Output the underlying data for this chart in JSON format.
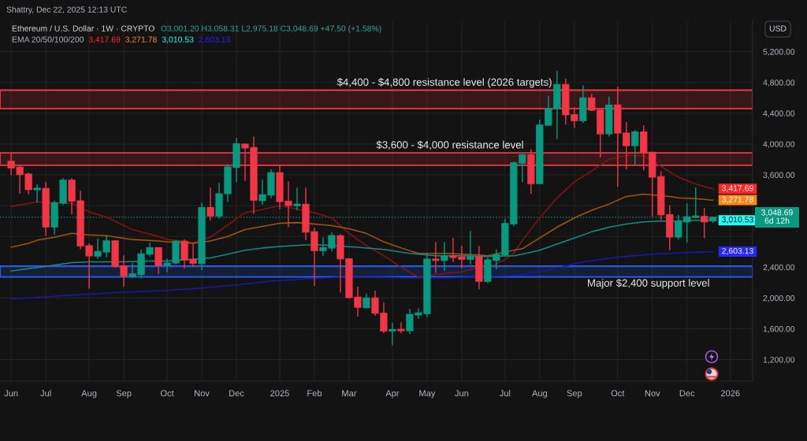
{
  "chart_data": {
    "type": "candlestick",
    "title": "Ethereum / U.S. Dollar · 1W · CRYPTO",
    "x": [
      "2024-06-03",
      "2024-06-10",
      "2024-06-17",
      "2024-06-24",
      "2024-07-01",
      "2024-07-08",
      "2024-07-15",
      "2024-07-22",
      "2024-07-29",
      "2024-08-05",
      "2024-08-12",
      "2024-08-19",
      "2024-08-26",
      "2024-09-02",
      "2024-09-09",
      "2024-09-16",
      "2024-09-23",
      "2024-09-30",
      "2024-10-07",
      "2024-10-14",
      "2024-10-21",
      "2024-10-28",
      "2024-11-04",
      "2024-11-11",
      "2024-11-18",
      "2024-11-25",
      "2024-12-02",
      "2024-12-09",
      "2024-12-16",
      "2024-12-23",
      "2024-12-30",
      "2025-01-06",
      "2025-01-13",
      "2025-01-20",
      "2025-01-27",
      "2025-02-03",
      "2025-02-10",
      "2025-02-17",
      "2025-02-24",
      "2025-03-03",
      "2025-03-10",
      "2025-03-17",
      "2025-03-24",
      "2025-03-31",
      "2025-04-07",
      "2025-04-14",
      "2025-04-21",
      "2025-04-28",
      "2025-05-05",
      "2025-05-12",
      "2025-05-19",
      "2025-05-26",
      "2025-06-02",
      "2025-06-09",
      "2025-06-16",
      "2025-06-23",
      "2025-06-30",
      "2025-07-07",
      "2025-07-14",
      "2025-07-21",
      "2025-07-28",
      "2025-08-04",
      "2025-08-11",
      "2025-08-18",
      "2025-08-25",
      "2025-09-01",
      "2025-09-08",
      "2025-09-15",
      "2025-09-22",
      "2025-09-29",
      "2025-10-06",
      "2025-10-13",
      "2025-10-20",
      "2025-10-27",
      "2025-11-03",
      "2025-11-10",
      "2025-11-17",
      "2025-11-24",
      "2025-12-01",
      "2025-12-08",
      "2025-12-15",
      "2025-12-22"
    ],
    "ohlc": [
      [
        3775,
        3877,
        3594,
        3690
      ],
      [
        3700,
        3730,
        3355,
        3604
      ],
      [
        3611,
        3629,
        3348,
        3410
      ],
      [
        3407,
        3478,
        3240,
        3427
      ],
      [
        3424,
        3509,
        2810,
        2923
      ],
      [
        2923,
        3264,
        2826,
        3236
      ],
      [
        3233,
        3560,
        3210,
        3530
      ],
      [
        3530,
        3560,
        3086,
        3260
      ],
      [
        3263,
        3393,
        2632,
        2677
      ],
      [
        2680,
        2711,
        2121,
        2547
      ],
      [
        2544,
        2769,
        2509,
        2606
      ],
      [
        2598,
        2810,
        2530,
        2742
      ],
      [
        2742,
        2752,
        2394,
        2411
      ],
      [
        2417,
        2558,
        2148,
        2289
      ],
      [
        2284,
        2455,
        2264,
        2312
      ],
      [
        2305,
        2632,
        2258,
        2575
      ],
      [
        2571,
        2721,
        2537,
        2653
      ],
      [
        2653,
        2660,
        2309,
        2428
      ],
      [
        2428,
        2514,
        2333,
        2455
      ],
      [
        2455,
        2752,
        2435,
        2739
      ],
      [
        2739,
        2762,
        2384,
        2496
      ],
      [
        2499,
        2708,
        2404,
        2452
      ],
      [
        2448,
        3240,
        2360,
        3174
      ],
      [
        3174,
        3434,
        3008,
        3066
      ],
      [
        3066,
        3496,
        3035,
        3355
      ],
      [
        3355,
        3741,
        3246,
        3703
      ],
      [
        3696,
        4082,
        3502,
        4003
      ],
      [
        3999,
        4010,
        3519,
        3949
      ],
      [
        3956,
        4099,
        3093,
        3271
      ],
      [
        3267,
        3537,
        3212,
        3342
      ],
      [
        3338,
        3673,
        3297,
        3629
      ],
      [
        3629,
        3724,
        3154,
        3253
      ],
      [
        3256,
        3516,
        2919,
        3202
      ],
      [
        3199,
        3434,
        3138,
        3219
      ],
      [
        3219,
        3434,
        2752,
        2857
      ],
      [
        2861,
        2913,
        2156,
        2616
      ],
      [
        2616,
        2786,
        2544,
        2657
      ],
      [
        2650,
        2854,
        2606,
        2813
      ],
      [
        2810,
        2831,
        2070,
        2509
      ],
      [
        2509,
        2513,
        1992,
        2008
      ],
      [
        2012,
        2148,
        1760,
        1879
      ],
      [
        1875,
        2059,
        1870,
        2002
      ],
      [
        2002,
        2097,
        1770,
        1803
      ],
      [
        1803,
        1941,
        1542,
        1572
      ],
      [
        1572,
        1678,
        1388,
        1589
      ],
      [
        1593,
        1685,
        1542,
        1575
      ],
      [
        1575,
        1855,
        1535,
        1787
      ],
      [
        1780,
        1865,
        1729,
        1808
      ],
      [
        1797,
        2591,
        1752,
        2506
      ],
      [
        2506,
        2728,
        2325,
        2489
      ],
      [
        2489,
        2728,
        2350,
        2547
      ],
      [
        2547,
        2780,
        2468,
        2527
      ],
      [
        2534,
        2677,
        2387,
        2503
      ],
      [
        2503,
        2872,
        2435,
        2537
      ],
      [
        2537,
        2673,
        2115,
        2217
      ],
      [
        2217,
        2527,
        2196,
        2496
      ],
      [
        2489,
        2632,
        2373,
        2561
      ],
      [
        2561,
        3028,
        2537,
        2967
      ],
      [
        2964,
        3775,
        2933,
        3755
      ],
      [
        3751,
        3877,
        3502,
        3860
      ],
      [
        3860,
        3936,
        3355,
        3485
      ],
      [
        3485,
        4320,
        3480,
        4246
      ],
      [
        4246,
        4627,
        4240,
        4463
      ],
      [
        4463,
        4950,
        4064,
        4774
      ],
      [
        4774,
        4849,
        4253,
        4381
      ],
      [
        4381,
        4474,
        4208,
        4304
      ],
      [
        4304,
        4764,
        4276,
        4600
      ],
      [
        4600,
        4652,
        4430,
        4440
      ],
      [
        4440,
        4450,
        3826,
        4133
      ],
      [
        4133,
        4617,
        4099,
        4508
      ],
      [
        4508,
        4747,
        3445,
        4143
      ],
      [
        4143,
        4287,
        3673,
        3980
      ],
      [
        3980,
        4184,
        3720,
        4156
      ],
      [
        4156,
        4243,
        3660,
        3884
      ],
      [
        3895,
        3900,
        3059,
        3570
      ],
      [
        3577,
        3645,
        3015,
        3082
      ],
      [
        3082,
        3205,
        2622,
        2793
      ],
      [
        2793,
        3082,
        2759,
        2990
      ],
      [
        2990,
        3230,
        2718,
        3056
      ],
      [
        3049,
        3440,
        3040,
        3066
      ],
      [
        3059,
        3171,
        2775,
        2990
      ],
      [
        3001.2,
        3058.31,
        2975.18,
        3048.69
      ]
    ],
    "colors": [
      "#f23645",
      "#f23645",
      "#f23645",
      "#089981",
      "#f23645",
      "#089981",
      "#089981",
      "#f23645",
      "#f23645",
      "#f23645",
      "#089981",
      "#089981",
      "#f23645",
      "#f23645",
      "#089981",
      "#089981",
      "#089981",
      "#f23645",
      "#089981",
      "#089981",
      "#f23645",
      "#f23645",
      "#089981",
      "#f23645",
      "#089981",
      "#089981",
      "#089981",
      "#f23645",
      "#f23645",
      "#089981",
      "#089981",
      "#f23645",
      "#f23645",
      "#089981",
      "#f23645",
      "#f23645",
      "#089981",
      "#089981",
      "#f23645",
      "#f23645",
      "#f23645",
      "#089981",
      "#f23645",
      "#f23645",
      "#089981",
      "#f23645",
      "#089981",
      "#089981",
      "#089981",
      "#f23645",
      "#089981",
      "#f23645",
      "#f23645",
      "#089981",
      "#f23645",
      "#089981",
      "#089981",
      "#089981",
      "#089981",
      "#089981",
      "#f23645",
      "#089981",
      "#089981",
      "#089981",
      "#f23645",
      "#f23645",
      "#089981",
      "#f23645",
      "#f23645",
      "#089981",
      "#f23645",
      "#f23645",
      "#089981",
      "#f23645",
      "#f23645",
      "#f23645",
      "#f23645",
      "#089981",
      "#089981",
      "#089981",
      "#f23645",
      "#089981"
    ],
    "series": [
      {
        "type": "line",
        "color": "#861414",
        "x": [
          "2024-06-03",
          "2024-06-17",
          "2024-06-24",
          "2024-07-22",
          "2024-08-05",
          "2024-08-19",
          "2024-09-09",
          "2024-09-30",
          "2024-10-07",
          "2024-10-28",
          "2024-11-11",
          "2024-11-25",
          "2024-12-09",
          "2024-12-23",
          "2025-01-06",
          "2025-02-03",
          "2025-02-17",
          "2025-03-03",
          "2025-03-17",
          "2025-03-31",
          "2025-04-14",
          "2025-04-28",
          "2025-05-19",
          "2025-06-02",
          "2025-06-09",
          "2025-06-30",
          "2025-07-07",
          "2025-07-14",
          "2025-07-21",
          "2025-08-04",
          "2025-08-18",
          "2025-09-01",
          "2025-09-15",
          "2025-09-29",
          "2025-10-13",
          "2025-10-27",
          "2025-11-10",
          "2025-11-24",
          "2025-12-08",
          "2025-12-22"
        ],
        "values": [
          3190,
          3230,
          3250,
          3230,
          3120,
          3050,
          2890,
          2800,
          2760,
          2720,
          2790,
          2950,
          3110,
          3150,
          3200,
          3110,
          3040,
          2840,
          2680,
          2550,
          2400,
          2270,
          2320,
          2340,
          2370,
          2440,
          2500,
          2580,
          2750,
          3040,
          3300,
          3510,
          3650,
          3800,
          3850,
          3850,
          3710,
          3570,
          3480,
          3417.69
        ],
        "value_labels": [
          null,
          null,
          null,
          null,
          null,
          null,
          null,
          null,
          null,
          null,
          null,
          null,
          null,
          null,
          null,
          null,
          null,
          null,
          null,
          null,
          null,
          null,
          null,
          null,
          null,
          null,
          null,
          null,
          null,
          null,
          null,
          null,
          null,
          null,
          null,
          null,
          null,
          null,
          null,
          "3,417.69"
        ]
      },
      {
        "type": "line",
        "color": "#a0550f",
        "x": [
          "2024-06-03",
          "2024-06-17",
          "2024-06-24",
          "2024-07-08",
          "2024-07-22",
          "2024-08-05",
          "2024-08-19",
          "2024-09-09",
          "2024-09-30",
          "2024-10-07",
          "2024-10-28",
          "2024-11-11",
          "2024-11-25",
          "2024-12-09",
          "2024-12-23",
          "2025-01-06",
          "2025-01-20",
          "2025-02-03",
          "2025-02-17",
          "2025-03-03",
          "2025-03-17",
          "2025-03-31",
          "2025-04-14",
          "2025-04-28",
          "2025-05-19",
          "2025-06-16",
          "2025-06-23",
          "2025-07-14",
          "2025-07-21",
          "2025-08-04",
          "2025-08-18",
          "2025-09-01",
          "2025-09-15",
          "2025-09-29",
          "2025-10-13",
          "2025-10-27",
          "2025-11-17",
          "2025-11-24",
          "2025-12-08",
          "2025-12-22"
        ],
        "values": [
          2660,
          2710,
          2750,
          2790,
          2840,
          2820,
          2810,
          2760,
          2740,
          2730,
          2710,
          2740,
          2800,
          2890,
          2930,
          2970,
          2980,
          2960,
          2940,
          2900,
          2840,
          2730,
          2650,
          2580,
          2580,
          2560,
          2550,
          2620,
          2640,
          2780,
          2920,
          3040,
          3140,
          3220,
          3320,
          3350,
          3320,
          3300,
          3290,
          3271.78
        ],
        "value_labels": [
          null,
          null,
          null,
          null,
          null,
          null,
          null,
          null,
          null,
          null,
          null,
          null,
          null,
          null,
          null,
          null,
          null,
          null,
          null,
          null,
          null,
          null,
          null,
          null,
          null,
          null,
          null,
          null,
          null,
          null,
          null,
          null,
          null,
          null,
          null,
          null,
          null,
          null,
          null,
          "3,271.78"
        ]
      },
      {
        "type": "line",
        "color": "#138c87",
        "x": [
          "2024-06-03",
          "2024-06-17",
          "2024-07-01",
          "2024-07-22",
          "2024-08-05",
          "2024-09-02",
          "2024-09-23",
          "2024-10-07",
          "2024-11-11",
          "2024-11-25",
          "2024-12-09",
          "2024-12-23",
          "2025-01-06",
          "2025-01-27",
          "2025-02-10",
          "2025-03-10",
          "2025-03-31",
          "2025-04-21",
          "2025-05-12",
          "2025-06-02",
          "2025-06-23",
          "2025-07-14",
          "2025-07-21",
          "2025-08-04",
          "2025-08-18",
          "2025-09-01",
          "2025-09-15",
          "2025-09-29",
          "2025-10-13",
          "2025-10-27",
          "2025-11-10",
          "2025-11-24",
          "2025-12-08",
          "2025-12-22"
        ],
        "values": [
          2350,
          2380,
          2410,
          2460,
          2470,
          2470,
          2480,
          2480,
          2520,
          2570,
          2620,
          2650,
          2670,
          2690,
          2690,
          2660,
          2630,
          2580,
          2550,
          2550,
          2540,
          2550,
          2570,
          2620,
          2700,
          2780,
          2860,
          2920,
          2960,
          2990,
          3000,
          3000,
          3010,
          3010.53
        ],
        "value_labels": [
          null,
          null,
          null,
          null,
          null,
          null,
          null,
          null,
          null,
          null,
          null,
          null,
          null,
          null,
          null,
          null,
          null,
          null,
          null,
          null,
          null,
          null,
          null,
          null,
          null,
          null,
          null,
          null,
          null,
          null,
          null,
          null,
          null,
          "3,010.53"
        ]
      },
      {
        "type": "line",
        "color": "#1919aa",
        "x": [
          "2024-06-03",
          "2024-07-15",
          "2024-08-26",
          "2024-10-07",
          "2024-11-04",
          "2024-12-02",
          "2024-12-30",
          "2025-01-27",
          "2025-02-24",
          "2025-03-24",
          "2025-04-21",
          "2025-05-19",
          "2025-06-09",
          "2025-07-14",
          "2025-08-11",
          "2025-09-08",
          "2025-10-06",
          "2025-11-03",
          "2025-12-01",
          "2025-12-22"
        ],
        "values": [
          1990,
          2030,
          2070,
          2100,
          2130,
          2170,
          2220,
          2250,
          2270,
          2270,
          2260,
          2260,
          2270,
          2290,
          2360,
          2470,
          2530,
          2570,
          2590,
          2603.13
        ],
        "value_labels": [
          null,
          null,
          null,
          null,
          null,
          null,
          null,
          null,
          null,
          null,
          null,
          null,
          null,
          null,
          null,
          null,
          null,
          null,
          null,
          "2,603.13"
        ]
      }
    ],
    "xlim": [
      "2024-05-25",
      "2026-01-23"
    ],
    "ylim": [
      920,
      5595
    ],
    "xticks": [
      {
        "value": "2024-06-03",
        "label": "Jun"
      },
      {
        "value": "2024-07-01",
        "label": "Jul"
      },
      {
        "value": "2024-08-05",
        "label": "Aug"
      },
      {
        "value": "2024-09-02",
        "label": "Sep"
      },
      {
        "value": "2024-10-07",
        "label": "Oct"
      },
      {
        "value": "2024-11-04",
        "label": "Nov"
      },
      {
        "value": "2024-12-02",
        "label": "Dec"
      },
      {
        "value": "2025-01-06",
        "label": "2025"
      },
      {
        "value": "2025-02-03",
        "label": "Feb"
      },
      {
        "value": "2025-03-03",
        "label": "Mar"
      },
      {
        "value": "2025-04-07",
        "label": "Apr"
      },
      {
        "value": "2025-05-05",
        "label": "May"
      },
      {
        "value": "2025-06-02",
        "label": "Jun"
      },
      {
        "value": "2025-07-07",
        "label": "Jul"
      },
      {
        "value": "2025-08-04",
        "label": "Aug"
      },
      {
        "value": "2025-09-01",
        "label": "Sep"
      },
      {
        "value": "2025-10-06",
        "label": "Oct"
      },
      {
        "value": "2025-11-03",
        "label": "Nov"
      },
      {
        "value": "2025-12-01",
        "label": "Dec"
      },
      {
        "value": "2026-01-05",
        "label": "2026"
      }
    ],
    "yticks": [
      {
        "value": 1200,
        "label": "1,200.00"
      },
      {
        "value": 1600,
        "label": "1,600.00"
      },
      {
        "value": 2000,
        "label": "2,000.00"
      },
      {
        "value": 2400,
        "label": "2,400.00"
      },
      {
        "value": 2800,
        "label": null
      },
      {
        "value": 3200,
        "label": null
      },
      {
        "value": 3600,
        "label": "3,600.00"
      },
      {
        "value": 4000,
        "label": "4,000.00"
      },
      {
        "value": 4400,
        "label": "4,400.00"
      },
      {
        "value": 4800,
        "label": "4,800.00"
      },
      {
        "value": 5200,
        "label": "5,200.00"
      }
    ],
    "ylabel": "USD",
    "annotations": [
      "Shattry, Dec 22, 2025 12:13 UTC",
      "O3,001.20 H3,058.31 L2,975.18 C3,048.69 +47.50 (+1.58%)",
      "EMA 20/50/100/200"
    ],
    "ref_lines": [
      {
        "axis": "y",
        "value": 3048.69,
        "label": "3,048.69\n6d 12h",
        "color": "#089981",
        "line_style": "dotted"
      }
    ],
    "bands": [
      {
        "axis": "y",
        "from": 4460,
        "to": 4700,
        "label": "$4,400 - $4,800 resistance level (2026 targets)",
        "color": "#f23645"
      },
      {
        "axis": "y",
        "from": 3725,
        "to": 3885,
        "label": "$3,600 - $4,000 resistance level",
        "color": "#f23645"
      },
      {
        "axis": "y",
        "from": 2275,
        "to": 2415,
        "label": "Major $2,400 support level",
        "color": "#2962ff"
      }
    ],
    "grid": true
  }
}
